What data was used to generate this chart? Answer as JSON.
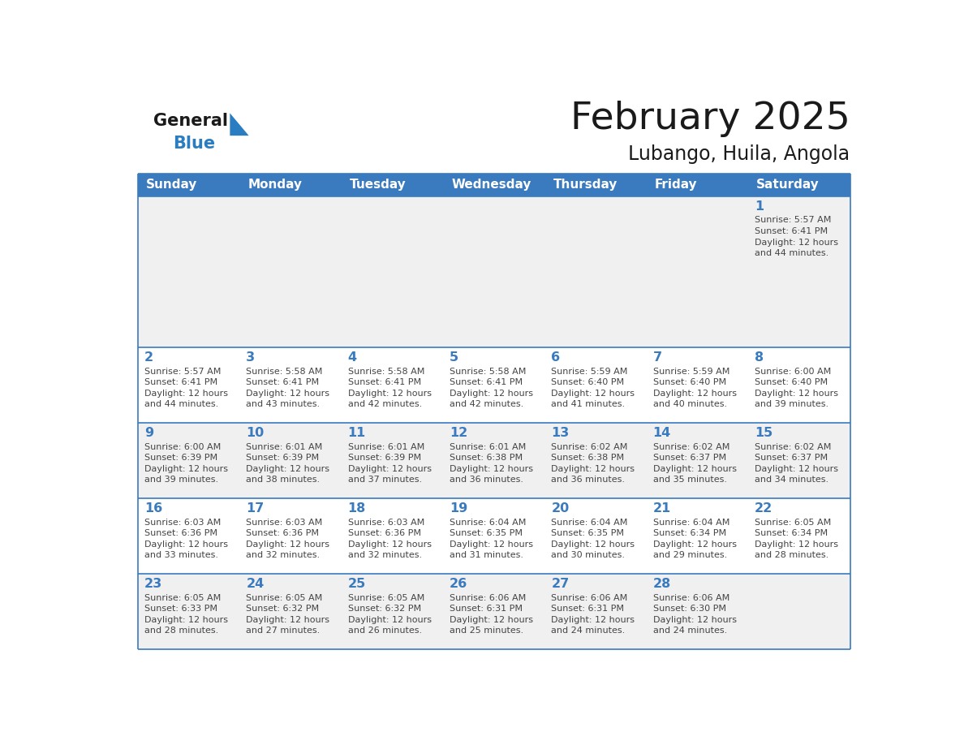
{
  "title": "February 2025",
  "subtitle": "Lubango, Huila, Angola",
  "header_bg": "#3a7abf",
  "header_text": "#ffffff",
  "day_names": [
    "Sunday",
    "Monday",
    "Tuesday",
    "Wednesday",
    "Thursday",
    "Friday",
    "Saturday"
  ],
  "row_bg": [
    "#f0f0f0",
    "#ffffff",
    "#f0f0f0",
    "#ffffff",
    "#f0f0f0"
  ],
  "grid_line_color": "#3a7abf",
  "day_num_color": "#3a7abf",
  "text_color": "#444444",
  "title_color": "#1a1a1a",
  "logo_general_color": "#1a1a1a",
  "logo_blue_color": "#2a7dc0",
  "cells": [
    [
      "",
      "",
      "",
      "",
      "",
      "",
      "1\nSunrise: 5:57 AM\nSunset: 6:41 PM\nDaylight: 12 hours\nand 44 minutes."
    ],
    [
      "2\nSunrise: 5:57 AM\nSunset: 6:41 PM\nDaylight: 12 hours\nand 44 minutes.",
      "3\nSunrise: 5:58 AM\nSunset: 6:41 PM\nDaylight: 12 hours\nand 43 minutes.",
      "4\nSunrise: 5:58 AM\nSunset: 6:41 PM\nDaylight: 12 hours\nand 42 minutes.",
      "5\nSunrise: 5:58 AM\nSunset: 6:41 PM\nDaylight: 12 hours\nand 42 minutes.",
      "6\nSunrise: 5:59 AM\nSunset: 6:40 PM\nDaylight: 12 hours\nand 41 minutes.",
      "7\nSunrise: 5:59 AM\nSunset: 6:40 PM\nDaylight: 12 hours\nand 40 minutes.",
      "8\nSunrise: 6:00 AM\nSunset: 6:40 PM\nDaylight: 12 hours\nand 39 minutes."
    ],
    [
      "9\nSunrise: 6:00 AM\nSunset: 6:39 PM\nDaylight: 12 hours\nand 39 minutes.",
      "10\nSunrise: 6:01 AM\nSunset: 6:39 PM\nDaylight: 12 hours\nand 38 minutes.",
      "11\nSunrise: 6:01 AM\nSunset: 6:39 PM\nDaylight: 12 hours\nand 37 minutes.",
      "12\nSunrise: 6:01 AM\nSunset: 6:38 PM\nDaylight: 12 hours\nand 36 minutes.",
      "13\nSunrise: 6:02 AM\nSunset: 6:38 PM\nDaylight: 12 hours\nand 36 minutes.",
      "14\nSunrise: 6:02 AM\nSunset: 6:37 PM\nDaylight: 12 hours\nand 35 minutes.",
      "15\nSunrise: 6:02 AM\nSunset: 6:37 PM\nDaylight: 12 hours\nand 34 minutes."
    ],
    [
      "16\nSunrise: 6:03 AM\nSunset: 6:36 PM\nDaylight: 12 hours\nand 33 minutes.",
      "17\nSunrise: 6:03 AM\nSunset: 6:36 PM\nDaylight: 12 hours\nand 32 minutes.",
      "18\nSunrise: 6:03 AM\nSunset: 6:36 PM\nDaylight: 12 hours\nand 32 minutes.",
      "19\nSunrise: 6:04 AM\nSunset: 6:35 PM\nDaylight: 12 hours\nand 31 minutes.",
      "20\nSunrise: 6:04 AM\nSunset: 6:35 PM\nDaylight: 12 hours\nand 30 minutes.",
      "21\nSunrise: 6:04 AM\nSunset: 6:34 PM\nDaylight: 12 hours\nand 29 minutes.",
      "22\nSunrise: 6:05 AM\nSunset: 6:34 PM\nDaylight: 12 hours\nand 28 minutes."
    ],
    [
      "23\nSunrise: 6:05 AM\nSunset: 6:33 PM\nDaylight: 12 hours\nand 28 minutes.",
      "24\nSunrise: 6:05 AM\nSunset: 6:32 PM\nDaylight: 12 hours\nand 27 minutes.",
      "25\nSunrise: 6:05 AM\nSunset: 6:32 PM\nDaylight: 12 hours\nand 26 minutes.",
      "26\nSunrise: 6:06 AM\nSunset: 6:31 PM\nDaylight: 12 hours\nand 25 minutes.",
      "27\nSunrise: 6:06 AM\nSunset: 6:31 PM\nDaylight: 12 hours\nand 24 minutes.",
      "28\nSunrise: 6:06 AM\nSunset: 6:30 PM\nDaylight: 12 hours\nand 24 minutes.",
      ""
    ]
  ],
  "row_heights_ratio": [
    2.0,
    1.0,
    1.0,
    1.0,
    1.0
  ]
}
